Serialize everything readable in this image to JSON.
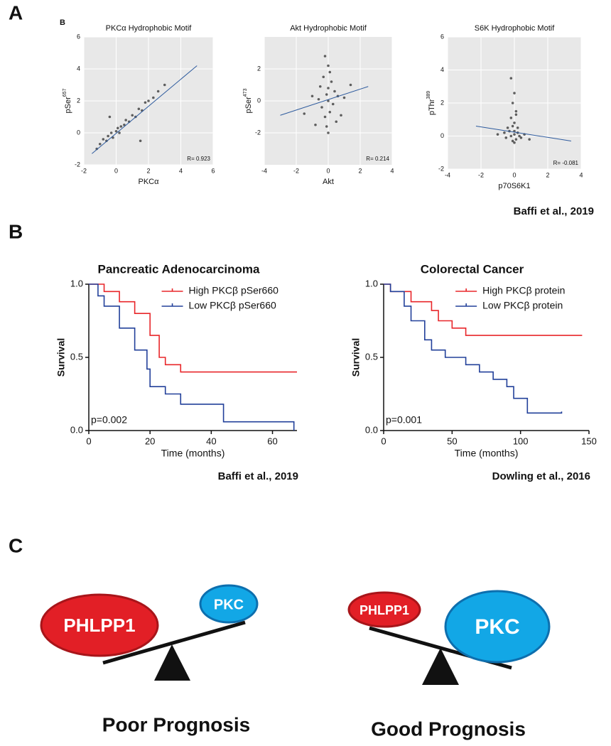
{
  "panel_labels": [
    "A",
    "B",
    "C"
  ],
  "inner_label": "B",
  "panel_a_source": "Baffi et al., 2019",
  "chart_data": [
    {
      "type": "scatter",
      "title": "PKCα Hydrophobic Motif",
      "xlabel": "PKCα",
      "ylabel": "pSer",
      "ylabel_sup": "657",
      "annotation": "R= 0.923",
      "xlim": [
        -2,
        6
      ],
      "xticks": [
        -2,
        0,
        2,
        4,
        6
      ],
      "ylim": [
        -2,
        6
      ],
      "yticks": [
        -2,
        0,
        2,
        4,
        6
      ],
      "grid": true,
      "points": {
        "x": [
          -1.2,
          -1,
          -0.8,
          -0.6,
          -0.5,
          -0.3,
          -0.2,
          0,
          0.1,
          0.2,
          0.3,
          0.5,
          0.6,
          0.8,
          1,
          1.2,
          1.4,
          1.6,
          1.8,
          2,
          2.3,
          2.6,
          3,
          1.5,
          -0.4
        ],
        "values": [
          -1.0,
          -0.7,
          -0.4,
          -0.5,
          -0.2,
          0,
          -0.3,
          0.1,
          0.3,
          0,
          0.4,
          0.5,
          0.8,
          0.7,
          1.1,
          1.0,
          1.5,
          1.4,
          1.9,
          2.0,
          2.2,
          2.6,
          3.0,
          -0.5,
          1.0
        ],
        "color": "#222222"
      },
      "fit": {
        "x": [
          -1.5,
          5
        ],
        "values": [
          -1.3,
          4.2
        ],
        "color": "#2e5b9e"
      }
    },
    {
      "type": "scatter",
      "title": "Akt Hydrophobic Motif",
      "xlabel": "Akt",
      "ylabel": "pSer",
      "ylabel_sup": "473",
      "annotation": "R= 0.214",
      "xlim": [
        -4,
        4
      ],
      "xticks": [
        -4,
        -2,
        0,
        2,
        4
      ],
      "ylim": [
        -4,
        4
      ],
      "yticks": [
        -2,
        0,
        2
      ],
      "grid": true,
      "points": {
        "x": [
          -0.2,
          0,
          0.1,
          -0.3,
          0.2,
          -0.5,
          0.4,
          -0.1,
          0,
          0.3,
          -0.4,
          0.1,
          -0.2,
          0.5,
          -0.1,
          0,
          -1,
          1,
          -1.5,
          1.4,
          -0.8,
          0.8,
          0,
          -0.6,
          0.6
        ],
        "values": [
          2.8,
          2.2,
          1.8,
          1.5,
          1.2,
          0.9,
          0.6,
          0.4,
          0,
          -0.2,
          -0.4,
          -0.7,
          -1.0,
          -1.3,
          -1.6,
          -2.0,
          0.3,
          0.2,
          -0.8,
          1.0,
          -1.5,
          -0.9,
          0.8,
          0.1,
          0.3
        ],
        "color": "#222222"
      },
      "fit": {
        "x": [
          -3,
          2.5
        ],
        "values": [
          -0.9,
          0.9
        ],
        "color": "#2e5b9e"
      }
    },
    {
      "type": "scatter",
      "title": "S6K Hydrophobic Motif",
      "xlabel": "p70S6K1",
      "ylabel": "pThr",
      "ylabel_sup": "389",
      "annotation": "R= -0.081",
      "xlim": [
        -4,
        4
      ],
      "xticks": [
        -4,
        -2,
        0,
        2,
        4
      ],
      "ylim": [
        -2,
        6
      ],
      "yticks": [
        -2,
        0,
        2,
        4,
        6
      ],
      "grid": true,
      "points": {
        "x": [
          -0.2,
          0,
          -0.1,
          0.1,
          -0.2,
          0,
          0.2,
          -0.3,
          0,
          0.3,
          -0.5,
          0.1,
          -0.1,
          0.4,
          -0.6,
          0.6,
          0,
          -0.2,
          0.2,
          -0.4,
          0.1,
          -1.0,
          0.9,
          0,
          -0.1
        ],
        "values": [
          3.5,
          2.6,
          2.0,
          1.5,
          1.1,
          0.8,
          0.5,
          0.3,
          0.1,
          0,
          -0.1,
          -0.2,
          -0.3,
          -0.1,
          0.2,
          0.1,
          -0.4,
          0,
          0.2,
          0.5,
          1.3,
          0.1,
          -0.2,
          0.3,
          0.6
        ],
        "color": "#222222"
      },
      "fit": {
        "x": [
          -2.3,
          3.4
        ],
        "values": [
          0.6,
          -0.3
        ],
        "color": "#2e5b9e"
      }
    },
    {
      "type": "step",
      "title": "Pancreatic Adenocarcinoma",
      "xlabel": "Time (months)",
      "ylabel": "Survival",
      "annotation": "p=0.002",
      "source": "Baffi et al., 2019",
      "xlim": [
        0,
        68
      ],
      "xticks": [
        0,
        20,
        40,
        60
      ],
      "ylim": [
        0,
        1
      ],
      "yticks": [
        {
          "value": 0,
          "label": "0.0"
        },
        0.5,
        {
          "value": 1,
          "label": "1.0"
        }
      ],
      "series": [
        {
          "name": "High PKCβ pSer660",
          "color": "#e8262a",
          "x": [
            0,
            5,
            10,
            15,
            20,
            23,
            25,
            30,
            68
          ],
          "values": [
            1.0,
            0.95,
            0.88,
            0.8,
            0.65,
            0.5,
            0.45,
            0.4,
            0.4
          ]
        },
        {
          "name": "Low PKCβ pSer660",
          "color": "#22409a",
          "x": [
            0,
            3,
            5,
            10,
            15,
            19,
            20,
            25,
            30,
            44,
            67
          ],
          "values": [
            1.0,
            0.92,
            0.85,
            0.7,
            0.55,
            0.42,
            0.3,
            0.25,
            0.18,
            0.06,
            0.0
          ]
        }
      ]
    },
    {
      "type": "step",
      "title": "Colorectal Cancer",
      "xlabel": "Time (months)",
      "ylabel": "Survival",
      "annotation": "p=0.001",
      "source": "Dowling et al., 2016",
      "xlim": [
        0,
        150
      ],
      "xticks": [
        0,
        50,
        100,
        150
      ],
      "ylim": [
        0,
        1
      ],
      "yticks": [
        {
          "value": 0,
          "label": "0.0"
        },
        0.5,
        {
          "value": 1,
          "label": "1.0"
        }
      ],
      "series": [
        {
          "name": "High PKCβ protein",
          "color": "#e8262a",
          "x": [
            0,
            5,
            20,
            35,
            40,
            50,
            60,
            145
          ],
          "values": [
            1.0,
            0.95,
            0.88,
            0.82,
            0.75,
            0.7,
            0.65,
            0.65
          ]
        },
        {
          "name": "Low PKCβ protein",
          "color": "#22409a",
          "x": [
            0,
            5,
            15,
            20,
            30,
            35,
            45,
            60,
            70,
            80,
            90,
            95,
            105,
            130
          ],
          "values": [
            1.0,
            0.95,
            0.85,
            0.75,
            0.62,
            0.55,
            0.5,
            0.45,
            0.4,
            0.35,
            0.3,
            0.22,
            0.12,
            0.13
          ]
        }
      ]
    }
  ],
  "diagram": {
    "left": {
      "heavy": "PHLPP1",
      "light": "PKC",
      "caption": "Poor Prognosis"
    },
    "right": {
      "light": "PHLPP1",
      "heavy": "PKC",
      "caption": "Good Prognosis"
    }
  }
}
